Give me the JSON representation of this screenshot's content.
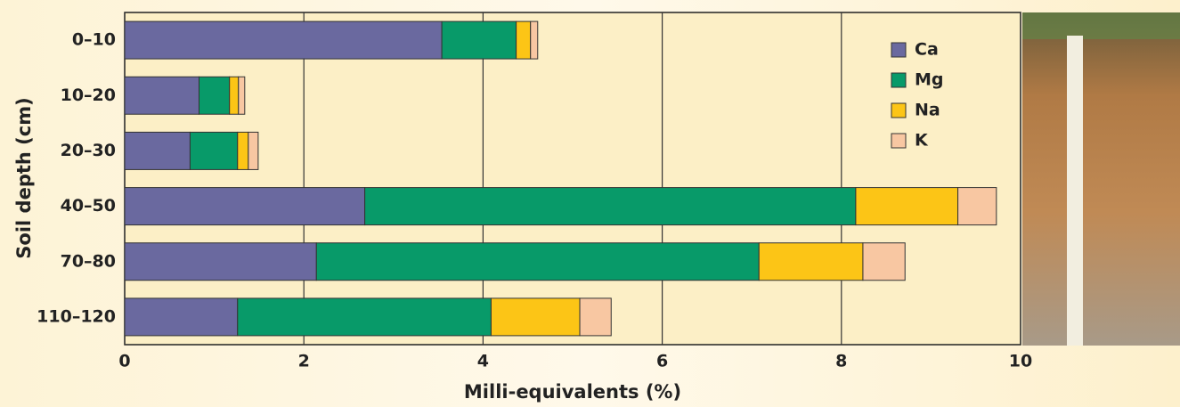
{
  "chart_data": {
    "type": "stacked-barh",
    "x_label": "Milli-equivalents (%)",
    "y_label": "Soil depth (cm)",
    "categories": [
      "0–10",
      "10–20",
      "20–30",
      "40–50",
      "70–80",
      "110–120"
    ],
    "series": [
      {
        "name": "Ca",
        "color": "#6a699f",
        "values": [
          3.54,
          0.83,
          0.73,
          2.68,
          2.14,
          1.26
        ]
      },
      {
        "name": "Mg",
        "color": "#089a69",
        "values": [
          0.83,
          0.34,
          0.53,
          5.48,
          4.94,
          2.83
        ]
      },
      {
        "name": "Na",
        "color": "#fcc516",
        "values": [
          0.16,
          0.1,
          0.12,
          1.14,
          1.16,
          0.99
        ]
      },
      {
        "name": "K",
        "color": "#f8c7a2",
        "values": [
          0.08,
          0.07,
          0.11,
          0.43,
          0.47,
          0.35
        ]
      }
    ],
    "xlim": [
      0,
      10
    ],
    "xticks": [
      0,
      2,
      4,
      6,
      8,
      10
    ],
    "grid": true,
    "legend": "top-right"
  }
}
